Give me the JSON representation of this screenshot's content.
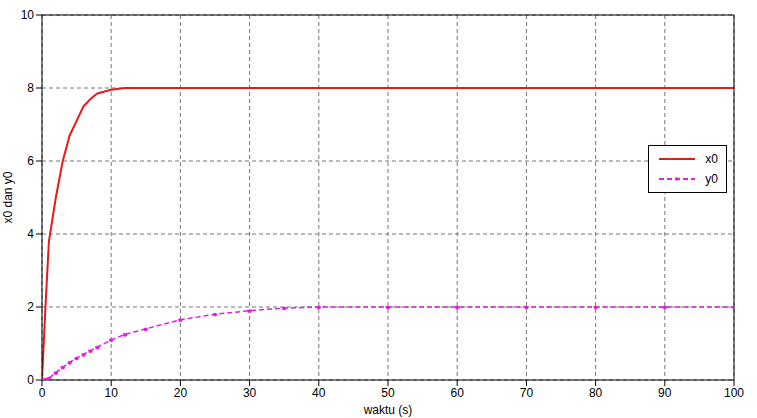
{
  "chart_data": {
    "type": "line",
    "x_label": "waktu (s)",
    "y_label": "x0 dan y0",
    "x": [
      0,
      0.5,
      1,
      2,
      3,
      4,
      5,
      6,
      7,
      8,
      10,
      12,
      15,
      20,
      25,
      30,
      35,
      40,
      50,
      60,
      70,
      80,
      90,
      100
    ],
    "series": [
      {
        "name": "x0",
        "color": "#e41a1c",
        "line_style": "solid",
        "marker": "none",
        "values": [
          0,
          2,
          3.8,
          5,
          6,
          6.7,
          7.1,
          7.5,
          7.7,
          7.85,
          7.95,
          8,
          8,
          8,
          8,
          8,
          8,
          8,
          8,
          8,
          8,
          8,
          8,
          8
        ]
      },
      {
        "name": "y0",
        "color": "#e020e0",
        "line_style": "dashed",
        "marker": "point",
        "values": [
          0,
          0.02,
          0.05,
          0.2,
          0.35,
          0.48,
          0.6,
          0.7,
          0.8,
          0.9,
          1.1,
          1.25,
          1.4,
          1.65,
          1.8,
          1.9,
          1.97,
          2,
          2,
          2,
          2,
          2,
          2,
          2
        ]
      }
    ],
    "xlim": [
      0,
      100
    ],
    "xticks": [
      0,
      10,
      20,
      30,
      40,
      50,
      60,
      70,
      80,
      90,
      100
    ],
    "ylim": [
      0,
      10
    ],
    "yticks": [
      0,
      2,
      4,
      6,
      8,
      10
    ],
    "grid": true,
    "legend": "right"
  }
}
